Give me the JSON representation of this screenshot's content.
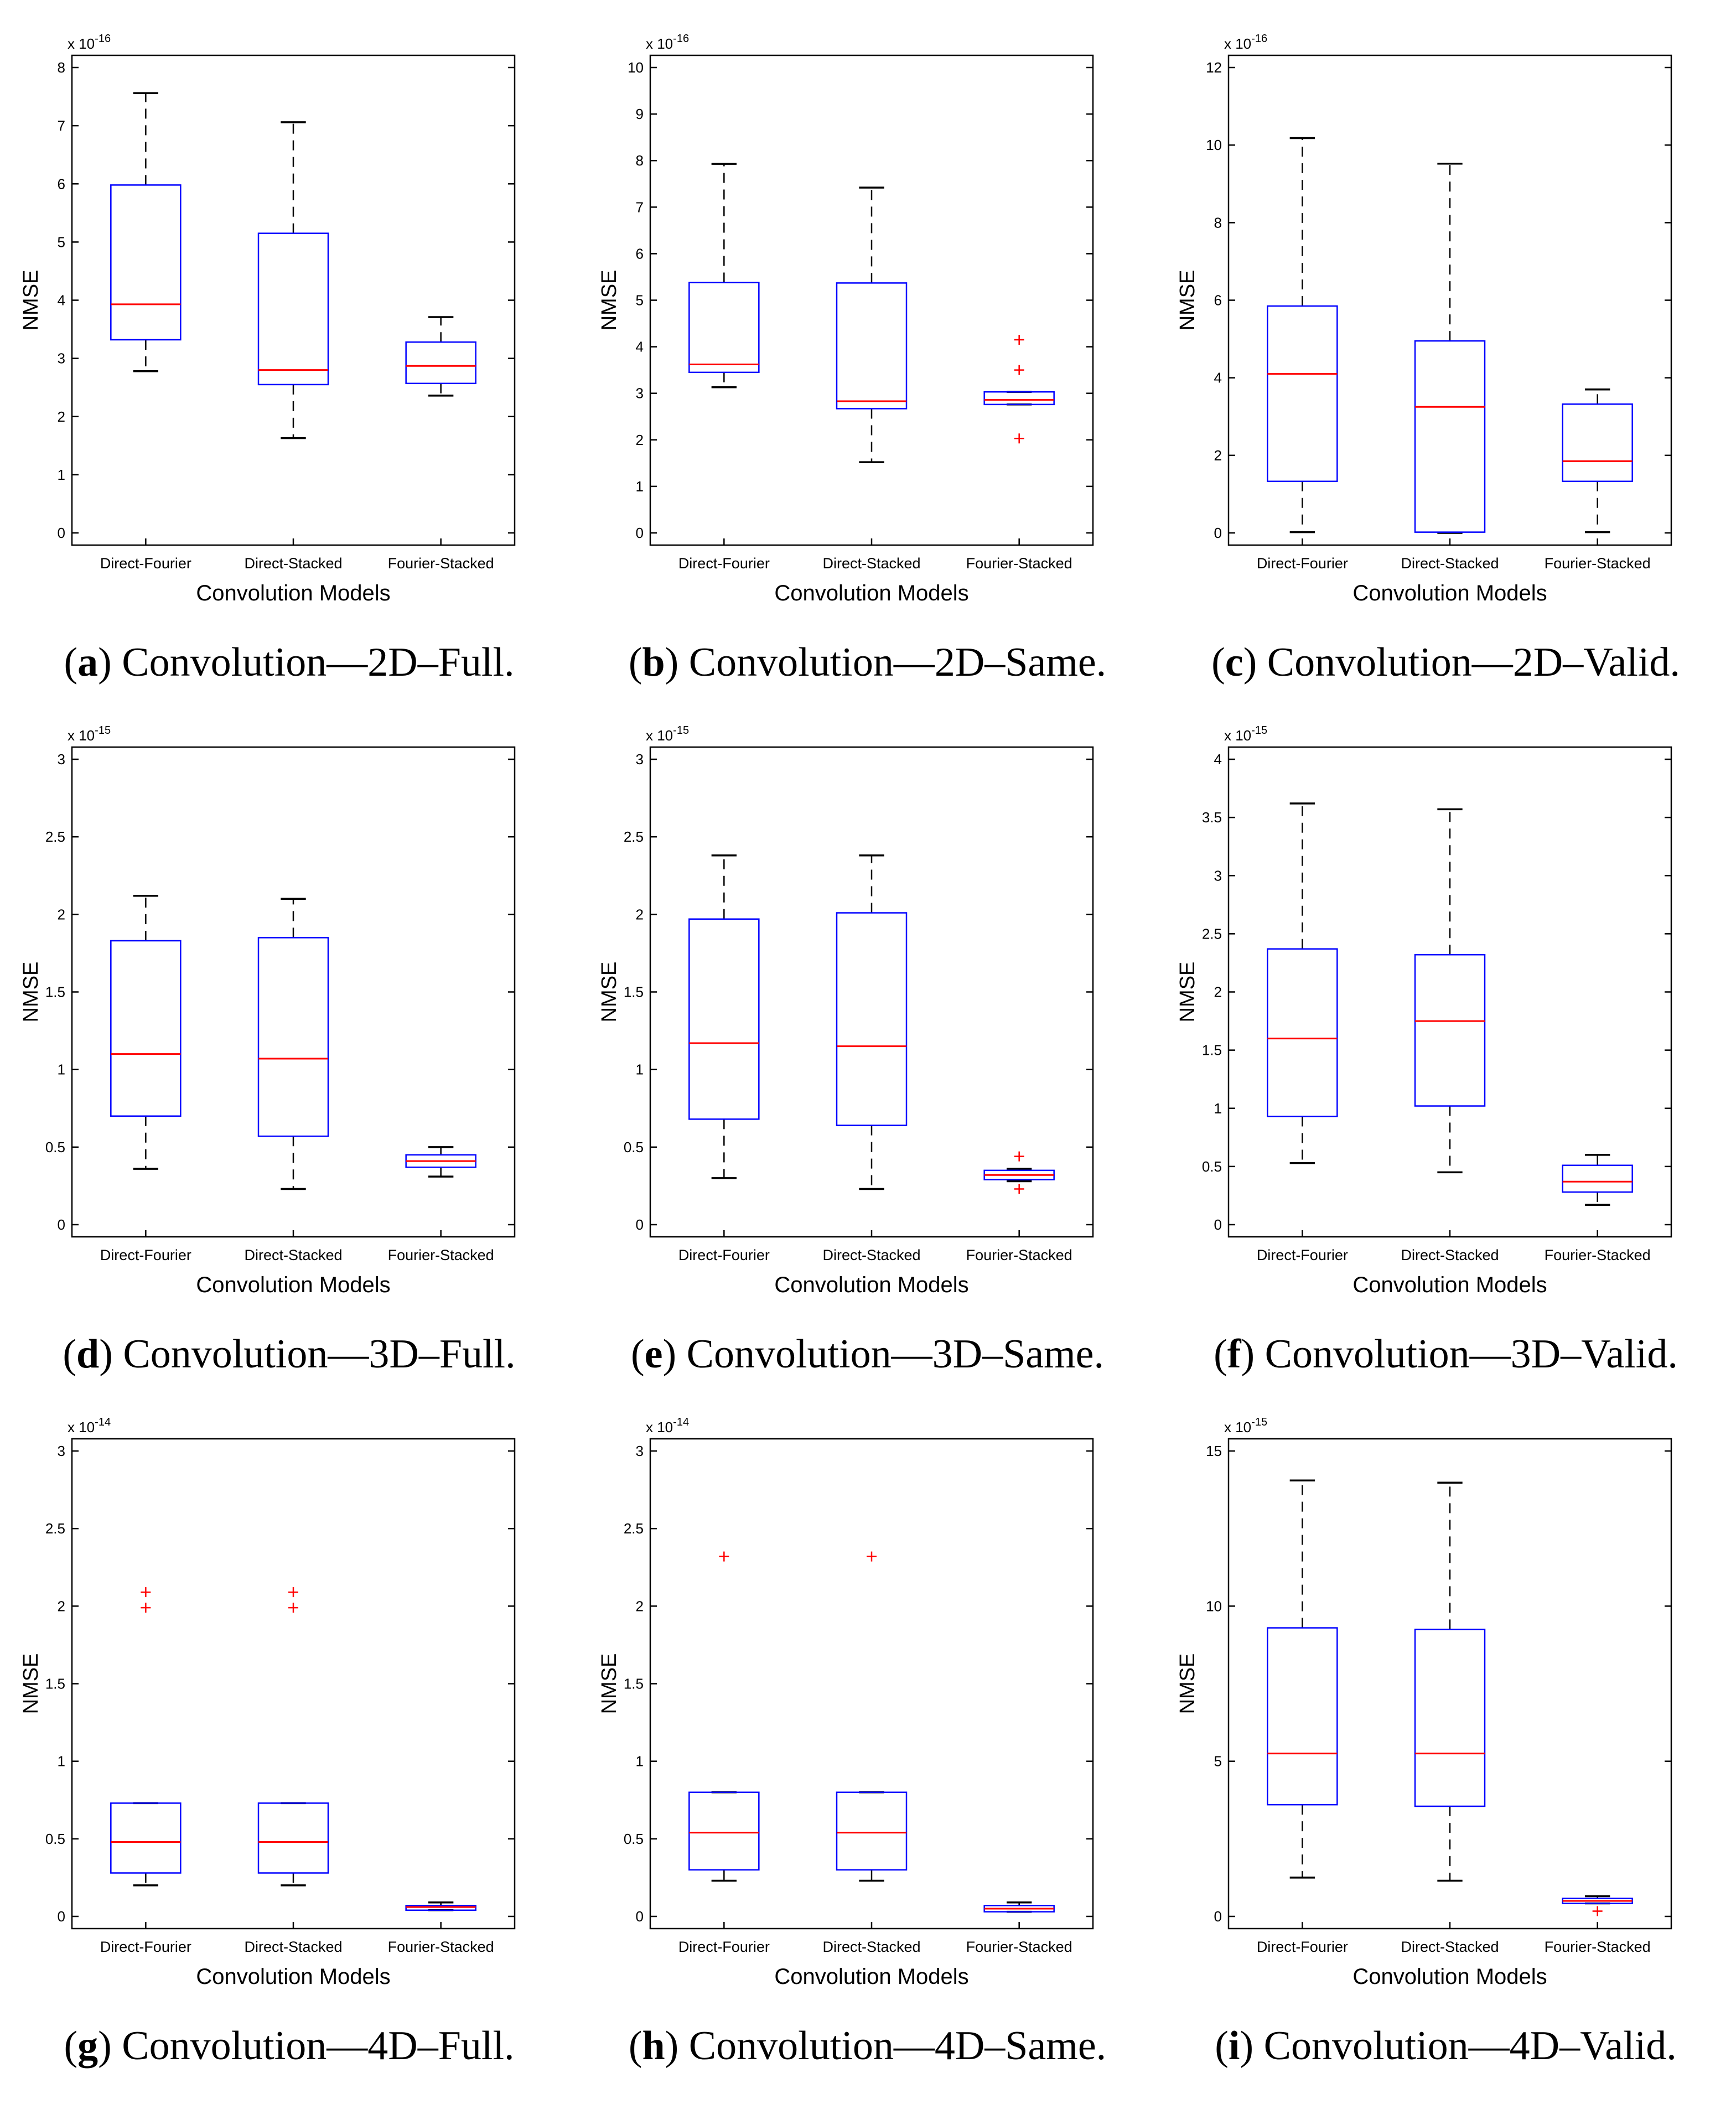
{
  "colors": {
    "box": "#0000ff",
    "median": "#ff0000",
    "outlier": "#ff0000",
    "whisker": "#000000"
  },
  "chart_data": [
    {
      "type": "boxplot",
      "letter": "a",
      "caption": "Convolution—2D–Full.",
      "xlabel": "Convolution Models",
      "ylabel": "NMSE",
      "exponent": "x 10",
      "exponent_power": "-16",
      "ylim": [
        0,
        8
      ],
      "yticks": [
        0,
        1,
        2,
        3,
        4,
        5,
        6,
        7,
        8
      ],
      "ytick_labels": [
        "0",
        "1",
        "2",
        "3",
        "4",
        "5",
        "6",
        "7",
        "8"
      ],
      "categories": [
        "Direct-Fourier",
        "Direct-Stacked",
        "Fourier-Stacked"
      ],
      "boxes": [
        {
          "min": 2.78,
          "q1": 3.32,
          "median": 3.93,
          "q3": 5.98,
          "max": 7.56,
          "outliers": []
        },
        {
          "min": 1.63,
          "q1": 2.55,
          "median": 2.8,
          "q3": 5.15,
          "max": 7.06,
          "outliers": []
        },
        {
          "min": 2.36,
          "q1": 2.57,
          "median": 2.87,
          "q3": 3.28,
          "max": 3.71,
          "outliers": []
        }
      ]
    },
    {
      "type": "boxplot",
      "letter": "b",
      "caption": "Convolution—2D–Same.",
      "xlabel": "Convolution Models",
      "ylabel": "NMSE",
      "exponent": "x 10",
      "exponent_power": "-16",
      "ylim": [
        0,
        10
      ],
      "yticks": [
        0,
        1,
        2,
        3,
        4,
        5,
        6,
        7,
        8,
        9,
        10
      ],
      "ytick_labels": [
        "0",
        "1",
        "2",
        "3",
        "4",
        "5",
        "6",
        "7",
        "8",
        "9",
        "10"
      ],
      "categories": [
        "Direct-Fourier",
        "Direct-Stacked",
        "Fourier-Stacked"
      ],
      "boxes": [
        {
          "min": 3.13,
          "q1": 3.45,
          "median": 3.62,
          "q3": 5.38,
          "max": 7.93,
          "outliers": []
        },
        {
          "min": 1.52,
          "q1": 2.67,
          "median": 2.83,
          "q3": 5.37,
          "max": 7.42,
          "outliers": []
        },
        {
          "min": 2.76,
          "q1": 2.76,
          "median": 2.86,
          "q3": 3.03,
          "max": 3.03,
          "outliers": [
            4.15,
            3.5,
            2.03
          ]
        }
      ]
    },
    {
      "type": "boxplot",
      "letter": "c",
      "caption": "Convolution—2D–Valid.",
      "xlabel": "Convolution Models",
      "ylabel": "NMSE",
      "exponent": "x 10",
      "exponent_power": "-16",
      "ylim": [
        0,
        12
      ],
      "yticks": [
        0,
        2,
        4,
        6,
        8,
        10,
        12
      ],
      "ytick_labels": [
        "0",
        "2",
        "4",
        "6",
        "8",
        "10",
        "12"
      ],
      "categories": [
        "Direct-Fourier",
        "Direct-Stacked",
        "Fourier-Stacked"
      ],
      "boxes": [
        {
          "min": 0.02,
          "q1": 1.33,
          "median": 4.1,
          "q3": 5.85,
          "max": 10.18,
          "outliers": []
        },
        {
          "min": 0.0,
          "q1": 0.02,
          "median": 3.25,
          "q3": 4.95,
          "max": 9.52,
          "outliers": []
        },
        {
          "min": 0.02,
          "q1": 1.33,
          "median": 1.85,
          "q3": 3.32,
          "max": 3.7,
          "outliers": []
        }
      ]
    },
    {
      "type": "boxplot",
      "letter": "d",
      "caption": "Convolution—3D–Full.",
      "xlabel": "Convolution Models",
      "ylabel": "NMSE",
      "exponent": "x 10",
      "exponent_power": "-15",
      "ylim": [
        0,
        3
      ],
      "yticks": [
        0,
        0.5,
        1,
        1.5,
        2,
        2.5,
        3
      ],
      "ytick_labels": [
        "0",
        "0.5",
        "1",
        "1.5",
        "2",
        "2.5",
        "3"
      ],
      "categories": [
        "Direct-Fourier",
        "Direct-Stacked",
        "Fourier-Stacked"
      ],
      "boxes": [
        {
          "min": 0.36,
          "q1": 0.7,
          "median": 1.1,
          "q3": 1.83,
          "max": 2.12,
          "outliers": []
        },
        {
          "min": 0.23,
          "q1": 0.57,
          "median": 1.07,
          "q3": 1.85,
          "max": 2.1,
          "outliers": []
        },
        {
          "min": 0.31,
          "q1": 0.37,
          "median": 0.41,
          "q3": 0.45,
          "max": 0.5,
          "outliers": []
        }
      ]
    },
    {
      "type": "boxplot",
      "letter": "e",
      "caption": "Convolution—3D–Same.",
      "xlabel": "Convolution Models",
      "ylabel": "NMSE",
      "exponent": "x 10",
      "exponent_power": "-15",
      "ylim": [
        0,
        3
      ],
      "yticks": [
        0,
        0.5,
        1,
        1.5,
        2,
        2.5,
        3
      ],
      "ytick_labels": [
        "0",
        "0.5",
        "1",
        "1.5",
        "2",
        "2.5",
        "3"
      ],
      "categories": [
        "Direct-Fourier",
        "Direct-Stacked",
        "Fourier-Stacked"
      ],
      "boxes": [
        {
          "min": 0.3,
          "q1": 0.68,
          "median": 1.17,
          "q3": 1.97,
          "max": 2.38,
          "outliers": []
        },
        {
          "min": 0.23,
          "q1": 0.64,
          "median": 1.15,
          "q3": 2.01,
          "max": 2.38,
          "outliers": []
        },
        {
          "min": 0.28,
          "q1": 0.29,
          "median": 0.32,
          "q3": 0.35,
          "max": 0.36,
          "outliers": [
            0.44,
            0.23
          ]
        }
      ]
    },
    {
      "type": "boxplot",
      "letter": "f",
      "caption": "Convolution—3D–Valid.",
      "xlabel": "Convolution Models",
      "ylabel": "NMSE",
      "exponent": "x 10",
      "exponent_power": "-15",
      "ylim": [
        0,
        4
      ],
      "yticks": [
        0,
        0.5,
        1,
        1.5,
        2,
        2.5,
        3,
        3.5,
        4
      ],
      "ytick_labels": [
        "0",
        "0.5",
        "1",
        "1.5",
        "2",
        "2.5",
        "3",
        "3.5",
        "4"
      ],
      "categories": [
        "Direct-Fourier",
        "Direct-Stacked",
        "Fourier-Stacked"
      ],
      "boxes": [
        {
          "min": 0.53,
          "q1": 0.93,
          "median": 1.6,
          "q3": 2.37,
          "max": 3.62,
          "outliers": []
        },
        {
          "min": 0.45,
          "q1": 1.02,
          "median": 1.75,
          "q3": 2.32,
          "max": 3.57,
          "outliers": []
        },
        {
          "min": 0.17,
          "q1": 0.28,
          "median": 0.37,
          "q3": 0.51,
          "max": 0.6,
          "outliers": []
        }
      ]
    },
    {
      "type": "boxplot",
      "letter": "g",
      "caption": "Convolution—4D–Full.",
      "xlabel": "Convolution Models",
      "ylabel": "NMSE",
      "exponent": "x 10",
      "exponent_power": "-14",
      "ylim": [
        0,
        3
      ],
      "yticks": [
        0,
        0.5,
        1,
        1.5,
        2,
        2.5,
        3
      ],
      "ytick_labels": [
        "0",
        "0.5",
        "1",
        "1.5",
        "2",
        "2.5",
        "3"
      ],
      "categories": [
        "Direct-Fourier",
        "Direct-Stacked",
        "Fourier-Stacked"
      ],
      "boxes": [
        {
          "min": 0.2,
          "q1": 0.28,
          "median": 0.48,
          "q3": 0.73,
          "max": 0.73,
          "outliers": [
            2.09,
            1.99
          ]
        },
        {
          "min": 0.2,
          "q1": 0.28,
          "median": 0.48,
          "q3": 0.73,
          "max": 0.73,
          "outliers": [
            2.09,
            1.99
          ]
        },
        {
          "min": 0.04,
          "q1": 0.04,
          "median": 0.06,
          "q3": 0.07,
          "max": 0.09,
          "outliers": []
        }
      ]
    },
    {
      "type": "boxplot",
      "letter": "h",
      "caption": "Convolution—4D–Same.",
      "xlabel": "Convolution Models",
      "ylabel": "NMSE",
      "exponent": "x 10",
      "exponent_power": "-14",
      "ylim": [
        0,
        3
      ],
      "yticks": [
        0,
        0.5,
        1,
        1.5,
        2,
        2.5,
        3
      ],
      "ytick_labels": [
        "0",
        "0.5",
        "1",
        "1.5",
        "2",
        "2.5",
        "3"
      ],
      "categories": [
        "Direct-Fourier",
        "Direct-Stacked",
        "Fourier-Stacked"
      ],
      "boxes": [
        {
          "min": 0.23,
          "q1": 0.3,
          "median": 0.54,
          "q3": 0.8,
          "max": 0.8,
          "outliers": [
            2.32
          ]
        },
        {
          "min": 0.23,
          "q1": 0.3,
          "median": 0.54,
          "q3": 0.8,
          "max": 0.8,
          "outliers": [
            2.32
          ]
        },
        {
          "min": 0.03,
          "q1": 0.03,
          "median": 0.05,
          "q3": 0.07,
          "max": 0.09,
          "outliers": []
        }
      ]
    },
    {
      "type": "boxplot",
      "letter": "i",
      "caption": "Convolution—4D–Valid.",
      "xlabel": "Convolution Models",
      "ylabel": "NMSE",
      "exponent": "x 10",
      "exponent_power": "-15",
      "ylim": [
        0,
        15
      ],
      "yticks": [
        0,
        5,
        10,
        15
      ],
      "ytick_labels": [
        "0",
        "5",
        "10",
        "15"
      ],
      "categories": [
        "Direct-Fourier",
        "Direct-Stacked",
        "Fourier-Stacked"
      ],
      "boxes": [
        {
          "min": 1.25,
          "q1": 3.6,
          "median": 5.25,
          "q3": 9.3,
          "max": 14.05,
          "outliers": []
        },
        {
          "min": 1.15,
          "q1": 3.55,
          "median": 5.25,
          "q3": 9.25,
          "max": 13.98,
          "outliers": []
        },
        {
          "min": 0.42,
          "q1": 0.42,
          "median": 0.5,
          "q3": 0.58,
          "max": 0.65,
          "outliers": [
            0.17
          ]
        }
      ]
    }
  ]
}
